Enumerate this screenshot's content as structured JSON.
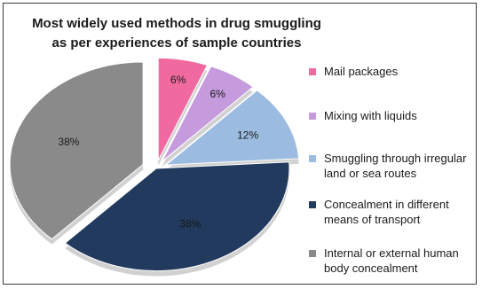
{
  "chart_data": {
    "type": "pie",
    "title": "Most widely used methods in drug smuggling as per experiences of sample countries",
    "slices": [
      {
        "label": "Mail packages",
        "value": 6,
        "value_label": "6%",
        "color": "#f06aa0"
      },
      {
        "label": "Mixing with liquids",
        "value": 6,
        "value_label": "6%",
        "color": "#c59bdd"
      },
      {
        "label": "Smuggling through irregular land or sea routes",
        "value": 12,
        "value_label": "12%",
        "color": "#9bbce0"
      },
      {
        "label": "Concealment in different means of transport",
        "value": 38,
        "value_label": "38%",
        "color": "#213a5e"
      },
      {
        "label": "Internal or external human body concealment",
        "value": 38,
        "value_label": "38%",
        "color": "#8a8a8a"
      }
    ],
    "legend_position": "right"
  }
}
